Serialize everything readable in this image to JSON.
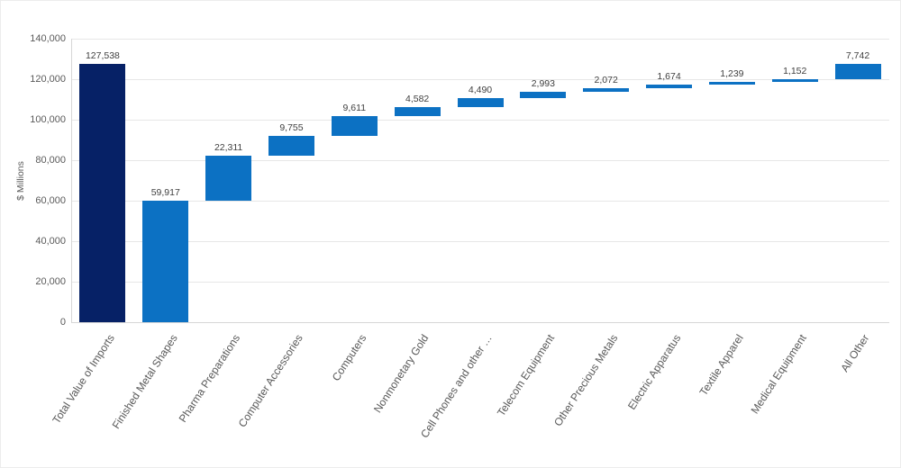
{
  "chart_data": {
    "type": "bar",
    "subtype": "waterfall",
    "title": "",
    "xlabel": "",
    "ylabel": "$ Millions",
    "ylim": [
      0,
      140000
    ],
    "ytick_step": 20000,
    "ytick_labels": [
      "0",
      "20,000",
      "40,000",
      "60,000",
      "80,000",
      "100,000",
      "120,000",
      "140,000"
    ],
    "grid": true,
    "legend": false,
    "categories": [
      "Total Value of Imports",
      "Finished Metal Shapes",
      "Pharma Preparations",
      "Computer Accessories",
      "Computers",
      "Nonmonetary Gold",
      "Cell Phones and other …",
      "Telecom Equipment",
      "Other Precious Metals",
      "Electric Apparatus",
      "Textile Apparel",
      "Medical Equipment",
      "All Other"
    ],
    "segments": [
      {
        "label": "Total Value of Imports",
        "value": 127538,
        "value_label": "127,538",
        "start": 0,
        "role": "total"
      },
      {
        "label": "Finished Metal Shapes",
        "value": 59917,
        "value_label": "59,917",
        "start": 0,
        "role": "segment"
      },
      {
        "label": "Pharma Preparations",
        "value": 22311,
        "value_label": "22,311",
        "start": 59917,
        "role": "segment"
      },
      {
        "label": "Computer Accessories",
        "value": 9755,
        "value_label": "9,755",
        "start": 82228,
        "role": "segment"
      },
      {
        "label": "Computers",
        "value": 9611,
        "value_label": "9,611",
        "start": 91983,
        "role": "segment"
      },
      {
        "label": "Nonmonetary Gold",
        "value": 4582,
        "value_label": "4,582",
        "start": 101594,
        "role": "segment"
      },
      {
        "label": "Cell Phones and other …",
        "value": 4490,
        "value_label": "4,490",
        "start": 106176,
        "role": "segment"
      },
      {
        "label": "Telecom Equipment",
        "value": 2993,
        "value_label": "2,993",
        "start": 110666,
        "role": "segment"
      },
      {
        "label": "Other Precious Metals",
        "value": 2072,
        "value_label": "2,072",
        "start": 113659,
        "role": "segment"
      },
      {
        "label": "Electric Apparatus",
        "value": 1674,
        "value_label": "1,674",
        "start": 115731,
        "role": "segment"
      },
      {
        "label": "Textile Apparel",
        "value": 1239,
        "value_label": "1,239",
        "start": 117405,
        "role": "segment"
      },
      {
        "label": "Medical Equipment",
        "value": 1152,
        "value_label": "1,152",
        "start": 118644,
        "role": "segment"
      },
      {
        "label": "All Other",
        "value": 7742,
        "value_label": "7,742",
        "start": 119796,
        "role": "segment"
      }
    ],
    "colors": {
      "total_bar": "#062166",
      "delta_bar": "#0c71c3",
      "value_label_text": "#404040",
      "axis_text": "#595959",
      "gridline": "#e7e7e7",
      "axis_line": "#d6d6d6",
      "background": "#ffffff"
    }
  }
}
